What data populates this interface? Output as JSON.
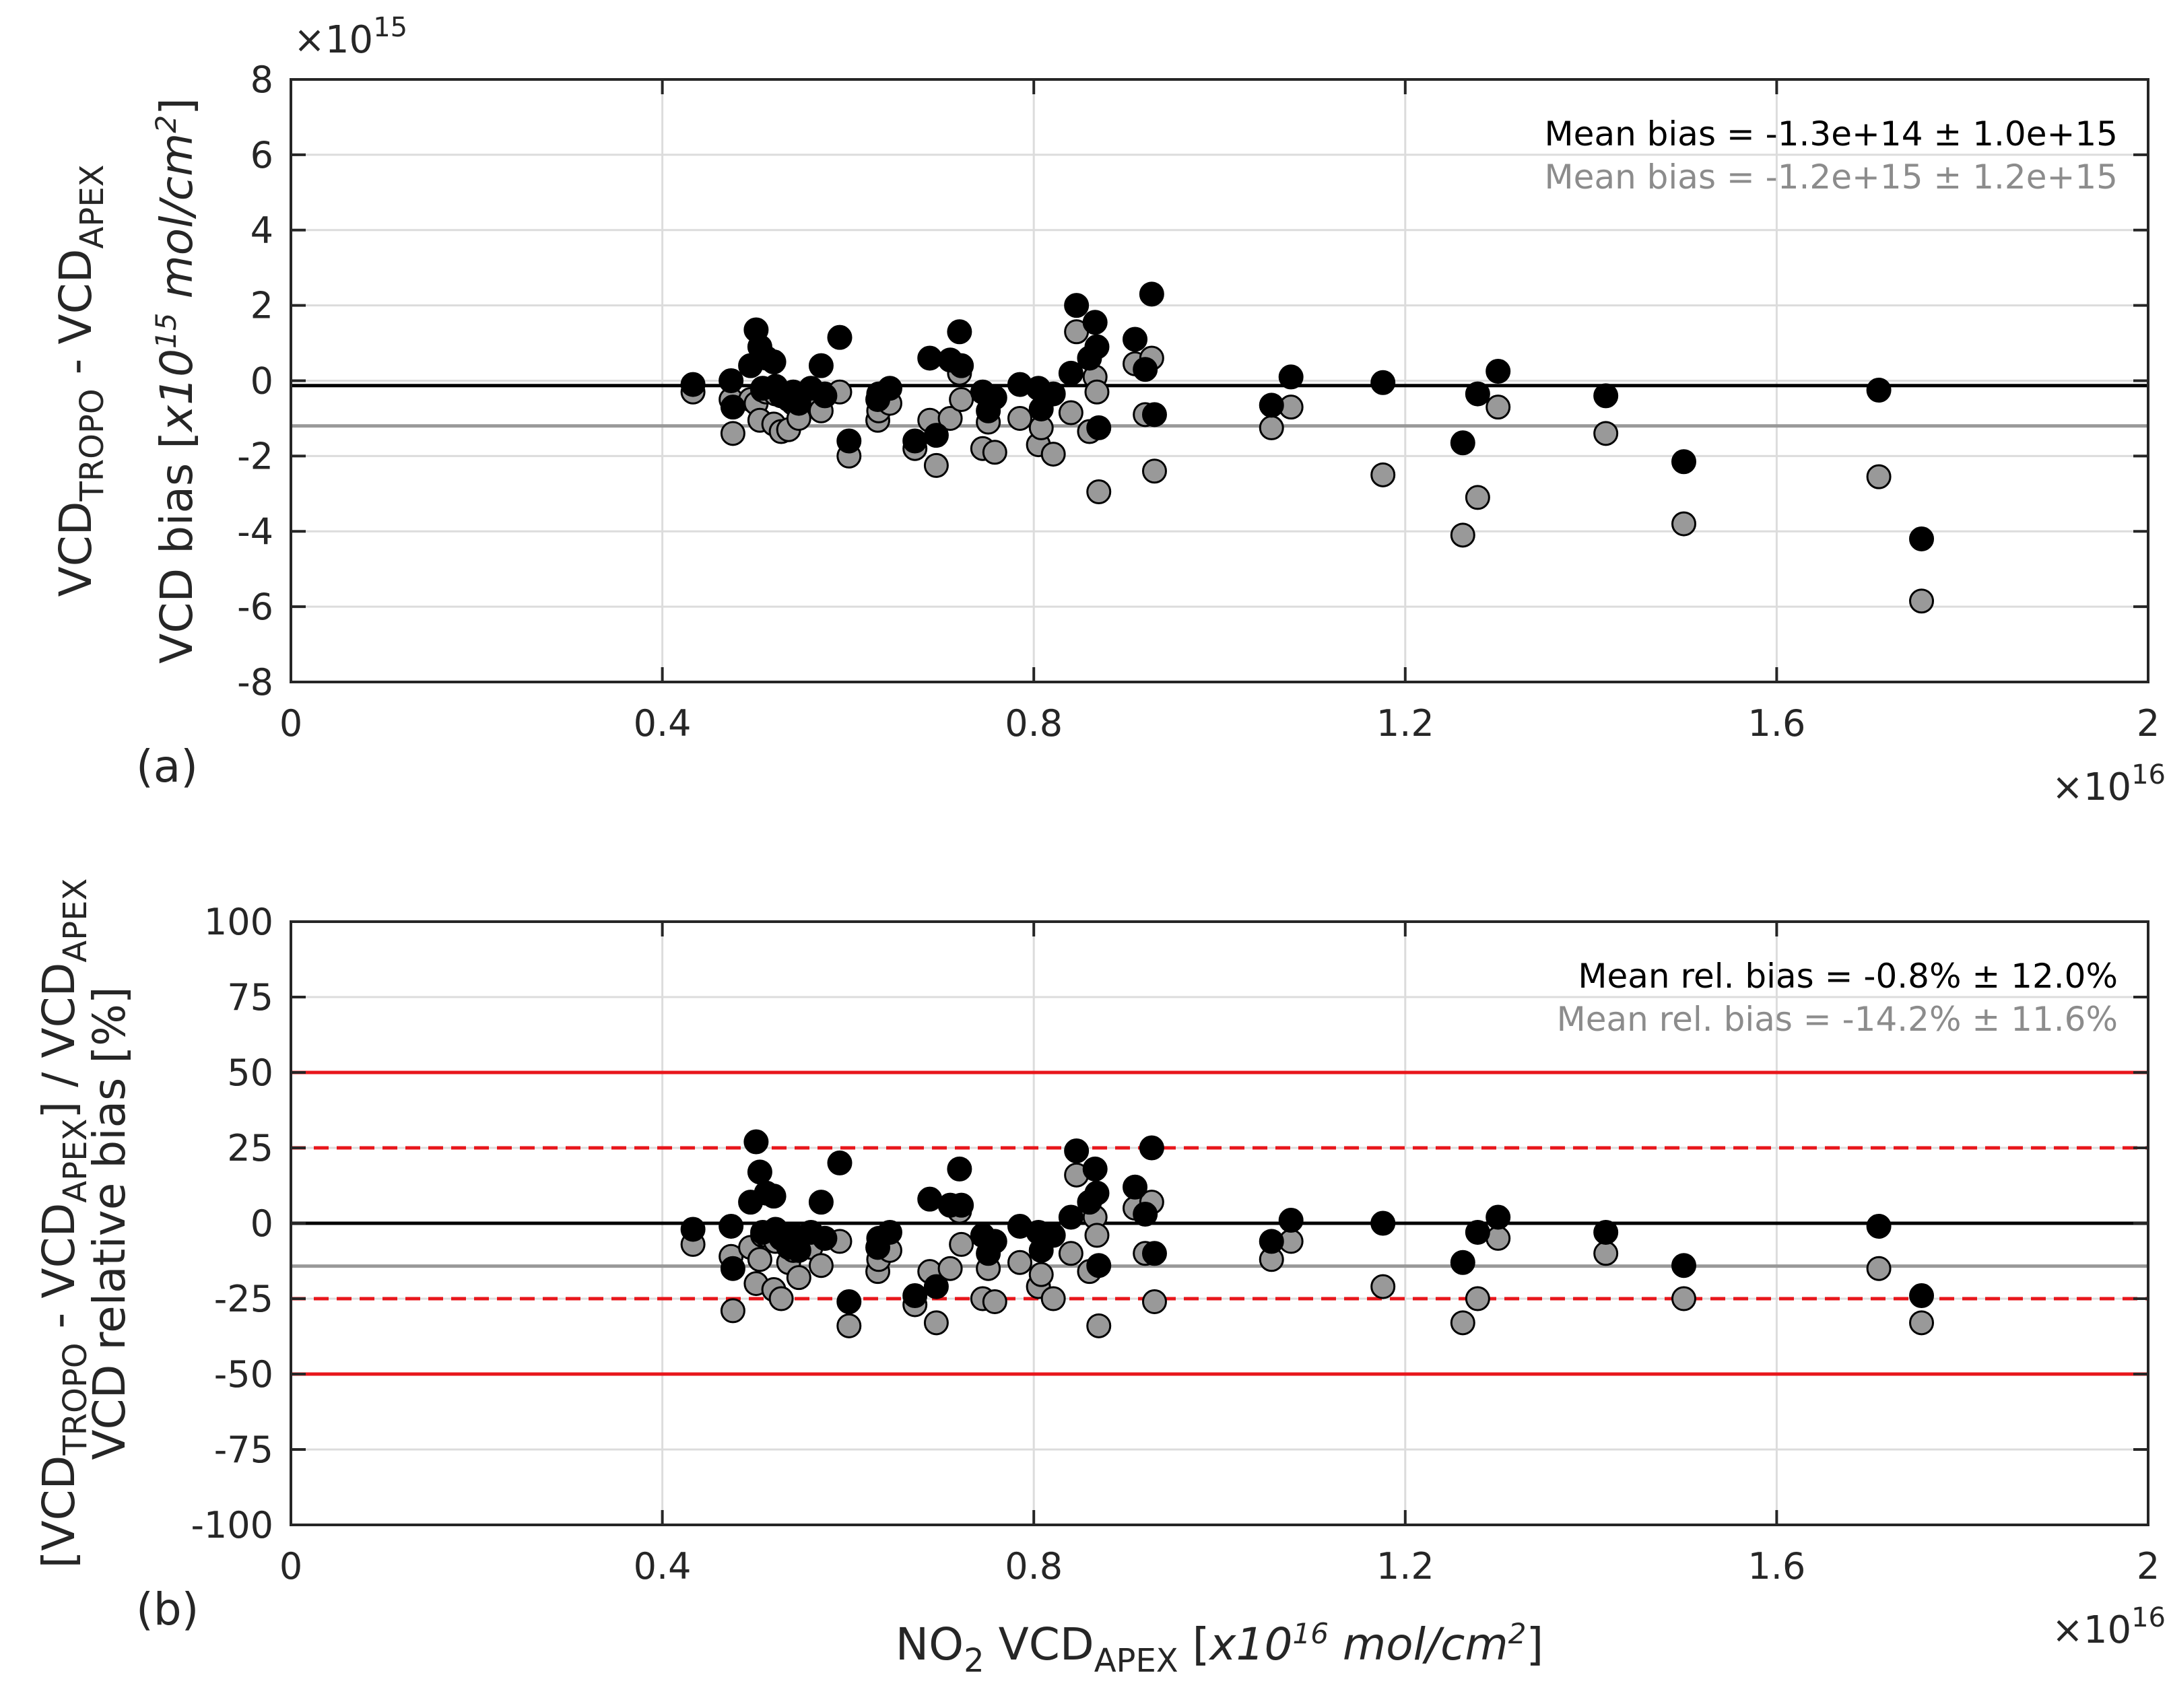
{
  "chart_data": [
    {
      "type": "scatter",
      "panel_label": "(a)",
      "ylabel_line1": {
        "main": "VCD",
        "sub1": "TROPO",
        "mid": " - VCD",
        "sub2": "APEX"
      },
      "ylabel_line2": {
        "main": "VCD bias [",
        "italic": "x10",
        "sup": "15",
        "italic2": " mol/cm",
        "sup2": "2",
        "end": "]"
      },
      "y_exponent": {
        "base": "×10",
        "power": "15"
      },
      "x_exponent": {
        "base": "×10",
        "power": "16"
      },
      "xlim": [
        0,
        2
      ],
      "ylim": [
        -8,
        8
      ],
      "xticks": [
        0,
        0.4,
        0.8,
        1.2,
        1.6,
        2
      ],
      "xtick_labels": [
        "0",
        "0.4",
        "0.8",
        "1.2",
        "1.6",
        "2"
      ],
      "yticks": [
        -8,
        -6,
        -4,
        -2,
        0,
        2,
        4,
        6,
        8
      ],
      "ytick_labels": [
        "-8",
        "-6",
        "-4",
        "-2",
        "0",
        "2",
        "4",
        "6",
        "8"
      ],
      "grid": true,
      "annotations": [
        {
          "text": "Mean bias = -1.3e+14 ± 1.0e+15",
          "color": "#000000"
        },
        {
          "text": "Mean bias = -1.2e+15 ± 1.2e+15",
          "color": "#8c8c8c"
        }
      ],
      "hlines": [
        {
          "y": -0.13,
          "color": "#000000",
          "dash": "solid"
        },
        {
          "y": -1.2,
          "color": "#999999",
          "dash": "solid"
        }
      ],
      "series": [
        {
          "color": "#000000",
          "x": [
            0.433,
            0.474,
            0.476,
            0.495,
            0.501,
            0.505,
            0.508,
            0.512,
            0.52,
            0.522,
            0.528,
            0.536,
            0.541,
            0.547,
            0.56,
            0.571,
            0.575,
            0.591,
            0.601,
            0.632,
            0.633,
            0.645,
            0.672,
            0.688,
            0.695,
            0.71,
            0.72,
            0.722,
            0.745,
            0.751,
            0.758,
            0.785,
            0.805,
            0.808,
            0.821,
            0.84,
            0.846,
            0.86,
            0.866,
            0.868,
            0.87,
            0.909,
            0.92,
            0.927,
            0.93,
            1.056,
            1.077,
            1.176,
            1.262,
            1.278,
            1.3,
            1.416,
            1.5,
            1.71,
            1.756
          ],
          "y": [
            -0.1,
            0.0,
            -0.7,
            0.4,
            1.35,
            0.9,
            -0.2,
            0.6,
            0.5,
            -0.15,
            -0.4,
            -0.5,
            -0.3,
            -0.6,
            -0.2,
            0.4,
            -0.4,
            1.15,
            -1.6,
            -0.5,
            -0.35,
            -0.2,
            -1.6,
            0.6,
            -1.45,
            0.55,
            1.3,
            0.4,
            -0.3,
            -0.8,
            -0.45,
            -0.1,
            -0.2,
            -0.75,
            -0.35,
            0.2,
            2.0,
            0.6,
            1.55,
            0.9,
            -1.25,
            1.1,
            0.3,
            2.3,
            -0.9,
            -0.65,
            0.1,
            -0.05,
            -1.65,
            -0.35,
            0.25,
            -0.4,
            -2.15,
            -0.25,
            -4.2
          ]
        },
        {
          "color": "#999999",
          "x": [
            0.433,
            0.474,
            0.476,
            0.495,
            0.501,
            0.505,
            0.508,
            0.512,
            0.52,
            0.522,
            0.528,
            0.536,
            0.541,
            0.547,
            0.56,
            0.571,
            0.575,
            0.591,
            0.601,
            0.632,
            0.633,
            0.645,
            0.672,
            0.688,
            0.695,
            0.71,
            0.72,
            0.722,
            0.745,
            0.751,
            0.758,
            0.785,
            0.805,
            0.808,
            0.821,
            0.84,
            0.846,
            0.86,
            0.866,
            0.868,
            0.87,
            0.909,
            0.92,
            0.927,
            0.93,
            1.056,
            1.077,
            1.176,
            1.262,
            1.278,
            1.3,
            1.416,
            1.5,
            1.71,
            1.756
          ],
          "y": [
            -0.3,
            -0.5,
            -1.4,
            -0.5,
            -0.6,
            -1.05,
            -0.25,
            -0.3,
            -1.15,
            -0.35,
            -1.35,
            -1.3,
            -0.6,
            -1.0,
            -0.5,
            -0.8,
            -0.35,
            -0.3,
            -2.0,
            -1.05,
            -0.8,
            -0.6,
            -1.8,
            -1.05,
            -2.25,
            -1.0,
            0.2,
            -0.5,
            -1.8,
            -1.1,
            -1.9,
            -1.0,
            -1.7,
            -1.25,
            -1.95,
            -0.85,
            1.3,
            -1.35,
            0.1,
            -0.3,
            -2.95,
            0.45,
            -0.9,
            0.6,
            -2.4,
            -1.25,
            -0.7,
            -2.5,
            -4.1,
            -3.1,
            -0.7,
            -1.4,
            -3.8,
            -2.55,
            -5.85
          ]
        }
      ]
    },
    {
      "type": "scatter",
      "panel_label": "(b)",
      "ylabel_line1": {
        "main": "[VCD",
        "sub1": "TROPO",
        "mid": " - VCD",
        "sub2": "APEX",
        "mid2": "] / VCD",
        "sub3": "APEX"
      },
      "ylabel_line2": "VCD relative bias [%]",
      "xlabel": {
        "pre": "NO",
        "sub": "2",
        "mid": " VCD",
        "sub2": "APEX",
        "mid2": " [",
        "italic": "x10",
        "sup": "16",
        "italic2": " mol/cm",
        "sup2": "2",
        "end": "]"
      },
      "x_exponent": {
        "base": "×10",
        "power": "16"
      },
      "xlim": [
        0,
        2
      ],
      "ylim": [
        -100,
        100
      ],
      "xticks": [
        0,
        0.4,
        0.8,
        1.2,
        1.6,
        2
      ],
      "xtick_labels": [
        "0",
        "0.4",
        "0.8",
        "1.2",
        "1.6",
        "2"
      ],
      "yticks": [
        -100,
        -75,
        -50,
        -25,
        0,
        25,
        50,
        75,
        100
      ],
      "ytick_labels": [
        "-100",
        "-75",
        "-50",
        "-25",
        "0",
        "25",
        "50",
        "75",
        "100"
      ],
      "grid": true,
      "annotations": [
        {
          "text": "Mean rel. bias = -0.8% ± 12.0%",
          "color": "#000000"
        },
        {
          "text": "Mean rel. bias = -14.2% ± 11.6%",
          "color": "#8c8c8c"
        }
      ],
      "hlines": [
        {
          "y": 50,
          "color": "#e8161b",
          "dash": "solid"
        },
        {
          "y": 25,
          "color": "#e8161b",
          "dash": "dashed"
        },
        {
          "y": 0,
          "color": "#000000",
          "dash": "solid"
        },
        {
          "y": -14.2,
          "color": "#999999",
          "dash": "solid"
        },
        {
          "y": -25,
          "color": "#e8161b",
          "dash": "dashed"
        },
        {
          "y": -50,
          "color": "#e8161b",
          "dash": "solid"
        }
      ],
      "series": [
        {
          "color": "#000000",
          "x": [
            0.433,
            0.474,
            0.476,
            0.495,
            0.501,
            0.505,
            0.508,
            0.512,
            0.52,
            0.522,
            0.528,
            0.536,
            0.541,
            0.547,
            0.56,
            0.571,
            0.575,
            0.591,
            0.601,
            0.632,
            0.633,
            0.645,
            0.672,
            0.688,
            0.695,
            0.71,
            0.72,
            0.722,
            0.745,
            0.751,
            0.758,
            0.785,
            0.805,
            0.808,
            0.821,
            0.84,
            0.846,
            0.86,
            0.866,
            0.868,
            0.87,
            0.909,
            0.92,
            0.927,
            0.93,
            1.056,
            1.077,
            1.176,
            1.262,
            1.278,
            1.3,
            1.416,
            1.5,
            1.71,
            1.756
          ],
          "y": [
            -2,
            -1,
            -15,
            7,
            27,
            17,
            -3,
            10,
            9,
            -2,
            -5,
            -8,
            -4,
            -9,
            -3,
            7,
            -5,
            20,
            -26,
            -8,
            -5,
            -3,
            -24,
            8,
            -21,
            6,
            18,
            6,
            -4,
            -10,
            -6,
            -1,
            -3,
            -9,
            -4,
            2,
            24,
            7,
            18,
            10,
            -14,
            12,
            3,
            25,
            -10,
            -6,
            1,
            0,
            -13,
            -3,
            2,
            -3,
            -14,
            -1,
            -24
          ]
        },
        {
          "color": "#999999",
          "x": [
            0.433,
            0.474,
            0.476,
            0.495,
            0.501,
            0.505,
            0.508,
            0.512,
            0.52,
            0.522,
            0.528,
            0.536,
            0.541,
            0.547,
            0.56,
            0.571,
            0.575,
            0.591,
            0.601,
            0.632,
            0.633,
            0.645,
            0.672,
            0.688,
            0.695,
            0.71,
            0.72,
            0.722,
            0.745,
            0.751,
            0.758,
            0.785,
            0.805,
            0.808,
            0.821,
            0.84,
            0.846,
            0.86,
            0.866,
            0.868,
            0.87,
            0.909,
            0.92,
            0.927,
            0.93,
            1.056,
            1.077,
            1.176,
            1.262,
            1.278,
            1.3,
            1.416,
            1.5,
            1.71,
            1.756
          ],
          "y": [
            -7,
            -11,
            -29,
            -8,
            -20,
            -12,
            -4,
            -4,
            -22,
            -6,
            -25,
            -13,
            -9,
            -18,
            -8,
            -14,
            -5,
            -6,
            -34,
            -16,
            -12,
            -9,
            -27,
            -16,
            -33,
            -15,
            4,
            -7,
            -25,
            -15,
            -26,
            -13,
            -21,
            -17,
            -25,
            -10,
            16,
            -16,
            2,
            -4,
            -34,
            5,
            -10,
            7,
            -26,
            -12,
            -6,
            -21,
            -33,
            -25,
            -5,
            -10,
            -25,
            -15,
            -33
          ]
        }
      ]
    }
  ]
}
